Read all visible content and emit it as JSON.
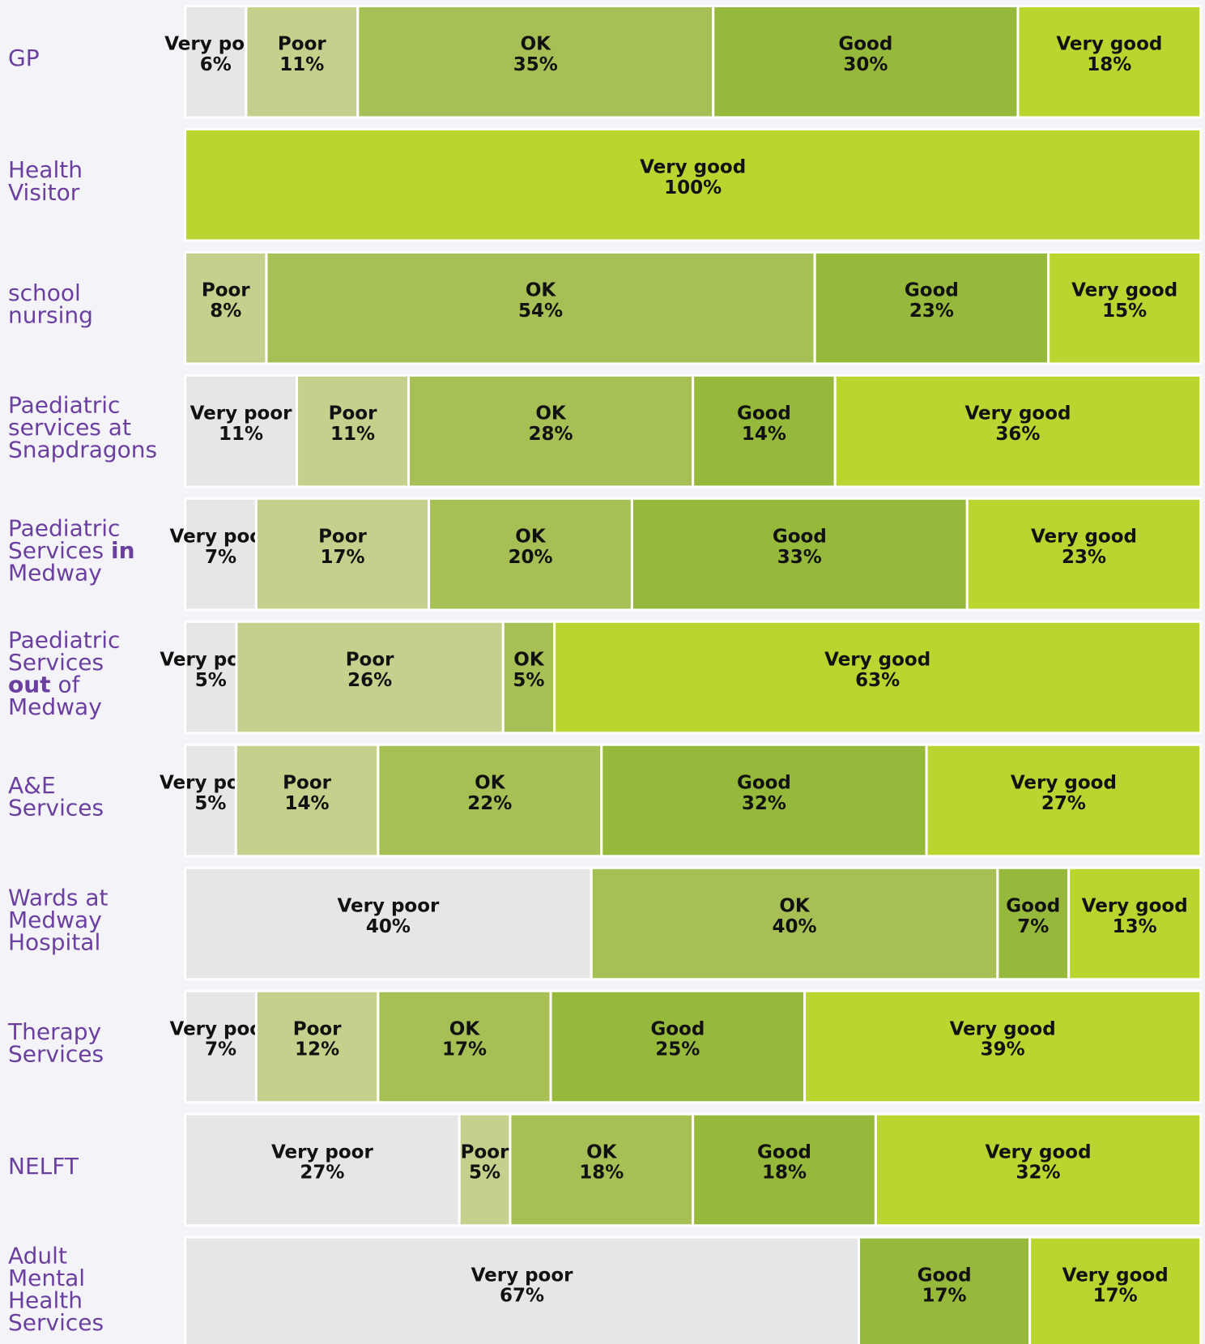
{
  "chart_data": {
    "type": "stacked-bar-horizontal",
    "colors": {
      "Very poor": "#e6e6e6",
      "Poor": "#c5d08c",
      "OK": "#a6c055",
      "Good": "#97b93b",
      "Very good": "#bad530"
    },
    "rows": [
      {
        "label": [
          "GP"
        ],
        "segments": [
          {
            "name": "Very poor",
            "value": 6,
            "value_label": "6%"
          },
          {
            "name": "Poor",
            "value": 11,
            "value_label": "11%"
          },
          {
            "name": "OK",
            "value": 35,
            "value_label": "35%"
          },
          {
            "name": "Good",
            "value": 30,
            "value_label": "30%"
          },
          {
            "name": "Very good",
            "value": 18,
            "value_label": "18%"
          }
        ]
      },
      {
        "label": [
          "Health",
          "Visitor"
        ],
        "segments": [
          {
            "name": "Very good",
            "value": 100,
            "value_label": "100%"
          }
        ]
      },
      {
        "label": [
          "school",
          "nursing"
        ],
        "segments": [
          {
            "name": "Poor",
            "value": 8,
            "value_label": "8%"
          },
          {
            "name": "OK",
            "value": 54,
            "value_label": "54%"
          },
          {
            "name": "Good",
            "value": 23,
            "value_label": "23%"
          },
          {
            "name": "Very good",
            "value": 15,
            "value_label": "15%"
          }
        ]
      },
      {
        "label": [
          "Paediatric",
          "services at",
          "Snapdragons"
        ],
        "segments": [
          {
            "name": "Very poor",
            "value": 11,
            "value_label": "11%"
          },
          {
            "name": "Poor",
            "value": 11,
            "value_label": "11%"
          },
          {
            "name": "OK",
            "value": 28,
            "value_label": "28%"
          },
          {
            "name": "Good",
            "value": 14,
            "value_label": "14%"
          },
          {
            "name": "Very good",
            "value": 36,
            "value_label": "36%"
          }
        ]
      },
      {
        "label": [
          "Paediatric",
          [
            {
              "text": "Services "
            },
            {
              "text": "in",
              "bold": true
            }
          ],
          "Medway"
        ],
        "segments": [
          {
            "name": "Very poor",
            "value": 7,
            "value_label": "7%"
          },
          {
            "name": "Poor",
            "value": 17,
            "value_label": "17%"
          },
          {
            "name": "OK",
            "value": 20,
            "value_label": "20%"
          },
          {
            "name": "Good",
            "value": 33,
            "value_label": "33%"
          },
          {
            "name": "Very good",
            "value": 23,
            "value_label": "23%"
          }
        ]
      },
      {
        "label": [
          "Paediatric",
          "Services",
          [
            {
              "text": "out",
              "bold": true
            },
            {
              "text": " of"
            }
          ],
          "Medway"
        ],
        "segments": [
          {
            "name": "Very poor",
            "value": 5,
            "value_label": "5%"
          },
          {
            "name": "Poor",
            "value": 26,
            "value_label": "26%"
          },
          {
            "name": "OK",
            "value": 5,
            "value_label": "5%"
          },
          {
            "name": "Very good",
            "value": 63,
            "value_label": "63%"
          }
        ]
      },
      {
        "label": [
          "A&E",
          "Services"
        ],
        "segments": [
          {
            "name": "Very poor",
            "value": 5,
            "value_label": "5%"
          },
          {
            "name": "Poor",
            "value": 14,
            "value_label": "14%"
          },
          {
            "name": "OK",
            "value": 22,
            "value_label": "22%"
          },
          {
            "name": "Good",
            "value": 32,
            "value_label": "32%"
          },
          {
            "name": "Very good",
            "value": 27,
            "value_label": "27%"
          }
        ]
      },
      {
        "label": [
          "Wards at",
          "Medway",
          "Hospital"
        ],
        "segments": [
          {
            "name": "Very poor",
            "value": 40,
            "value_label": "40%"
          },
          {
            "name": "OK",
            "value": 40,
            "value_label": "40%"
          },
          {
            "name": "Good",
            "value": 7,
            "value_label": "7%"
          },
          {
            "name": "Very good",
            "value": 13,
            "value_label": "13%"
          }
        ]
      },
      {
        "label": [
          "Therapy",
          "Services"
        ],
        "segments": [
          {
            "name": "Very poor",
            "value": 7,
            "value_label": "7%"
          },
          {
            "name": "Poor",
            "value": 12,
            "value_label": "12%"
          },
          {
            "name": "OK",
            "value": 17,
            "value_label": "17%"
          },
          {
            "name": "Good",
            "value": 25,
            "value_label": "25%"
          },
          {
            "name": "Very good",
            "value": 39,
            "value_label": "39%"
          }
        ]
      },
      {
        "label": [
          "NELFT"
        ],
        "segments": [
          {
            "name": "Very poor",
            "value": 27,
            "value_label": "27%"
          },
          {
            "name": "Poor",
            "value": 5,
            "value_label": "5%"
          },
          {
            "name": "OK",
            "value": 18,
            "value_label": "18%"
          },
          {
            "name": "Good",
            "value": 18,
            "value_label": "18%"
          },
          {
            "name": "Very good",
            "value": 32,
            "value_label": "32%"
          }
        ]
      },
      {
        "label": [
          "Adult",
          "Mental",
          "Health",
          "Services"
        ],
        "segments": [
          {
            "name": "Very poor",
            "value": 67,
            "value_label": "67%"
          },
          {
            "name": "Good",
            "value": 17,
            "value_label": "17%"
          },
          {
            "name": "Very good",
            "value": 17,
            "value_label": "17%"
          }
        ]
      }
    ]
  }
}
